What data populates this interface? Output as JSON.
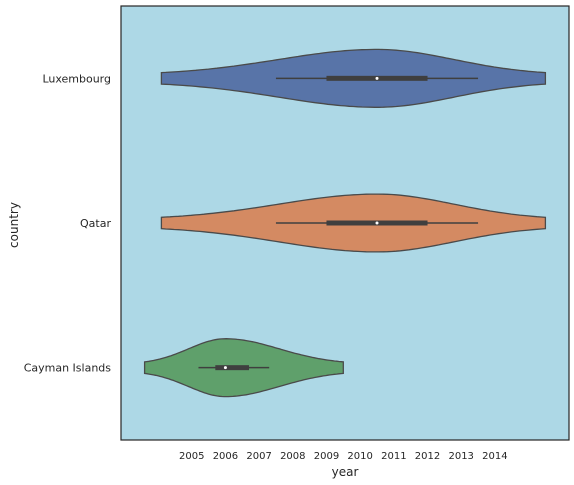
{
  "chart_data": {
    "type": "violin",
    "orientation": "horizontal",
    "title": "",
    "xlabel": "year",
    "ylabel": "country",
    "xticks": [
      2005,
      2006,
      2007,
      2008,
      2009,
      2010,
      2011,
      2012,
      2013,
      2014
    ],
    "xlim": [
      2002.9,
      2016.2
    ],
    "grid": false,
    "background_color": "#add8e6",
    "categories": [
      "Luxembourg",
      "Qatar",
      "Cayman Islands"
    ],
    "series": [
      {
        "category": "Luxembourg",
        "color": "#5874a8",
        "min": 2007.5,
        "q1": 2009.0,
        "median": 2010.5,
        "q3": 2012.0,
        "max": 2013.5,
        "kde_range": [
          2004.1,
          2015.5
        ],
        "kde_peak": 2010.5
      },
      {
        "category": "Qatar",
        "color": "#d48a62",
        "min": 2007.5,
        "q1": 2009.0,
        "median": 2010.5,
        "q3": 2012.0,
        "max": 2013.5,
        "kde_range": [
          2004.1,
          2015.5
        ],
        "kde_peak": 2010.5
      },
      {
        "category": "Cayman Islands",
        "color": "#5fa06b",
        "min": 2005.2,
        "q1": 2005.7,
        "median": 2006.0,
        "q3": 2006.7,
        "max": 2007.3,
        "kde_range": [
          2003.6,
          2009.5
        ],
        "kde_peak": 2006.0
      }
    ]
  }
}
